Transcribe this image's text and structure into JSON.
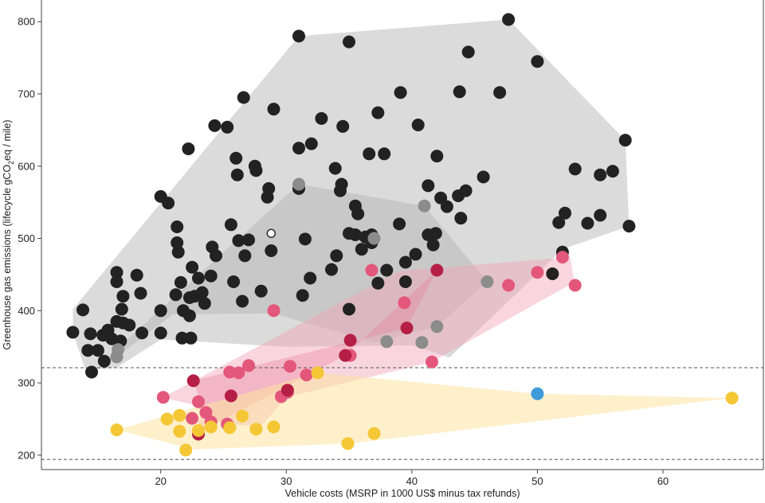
{
  "chart_data": {
    "type": "scatter",
    "xlabel": "Vehicle costs (MSRP in 1000 US$ minus tax refunds)",
    "ylabel_parts": [
      "Greenhouse gas emissions (lifecycle gCO",
      "2",
      "eq / mile)"
    ],
    "xlim": [
      10.5,
      68
    ],
    "ylim": [
      180,
      830
    ],
    "x_ticks": [
      20,
      30,
      40,
      50,
      60
    ],
    "y_ticks": [
      200,
      300,
      400,
      500,
      600,
      700,
      800
    ],
    "grid": false,
    "reference_lines": [
      {
        "y": 321,
        "style": "dashed"
      },
      {
        "y": 194,
        "style": "dashed"
      }
    ],
    "colors": {
      "black": "#222222",
      "gray": "#8c8c8c",
      "pink": "#e3577b",
      "crimson": "#b51f45",
      "yellow": "#f5c735",
      "blue": "#3f9ad9",
      "white": "#ffffff",
      "hull_gray": "#bdbdbd",
      "hull_pink": "#f2a3b8",
      "hull_yellow": "#fbe3a0"
    },
    "hulls": [
      {
        "name": "black",
        "color": "#bdbdbd",
        "opacity": 0.55,
        "points": [
          [
            13,
            370
          ],
          [
            14,
            318
          ],
          [
            16.5,
            321
          ],
          [
            20,
            360
          ],
          [
            30,
            350
          ],
          [
            40,
            352
          ],
          [
            43,
            335
          ],
          [
            52,
            485
          ],
          [
            57.3,
            517
          ],
          [
            57,
            636
          ],
          [
            47.7,
            803
          ],
          [
            31,
            780
          ],
          [
            13,
            402
          ]
        ]
      },
      {
        "name": "gray",
        "color": "#9a9a9a",
        "opacity": 0.3,
        "points": [
          [
            16.5,
            336
          ],
          [
            16.5,
            347
          ],
          [
            31,
            575
          ],
          [
            41,
            545
          ],
          [
            46,
            440
          ],
          [
            42,
            378
          ],
          [
            37,
            356
          ],
          [
            29,
            396
          ],
          [
            21,
            395
          ]
        ]
      },
      {
        "name": "pink",
        "color": "#f2a3b8",
        "opacity": 0.45,
        "points": [
          [
            20.2,
            280
          ],
          [
            22.5,
            270
          ],
          [
            25,
            243
          ],
          [
            28,
            240
          ],
          [
            30,
            280
          ],
          [
            41.6,
            329
          ],
          [
            52.5,
            435
          ],
          [
            53,
            435
          ],
          [
            52.6,
            474
          ],
          [
            39,
            455
          ]
        ]
      },
      {
        "name": "crimson",
        "color": "#e77b98",
        "opacity": 0.35,
        "points": [
          [
            22.6,
            303
          ],
          [
            23.3,
            268
          ],
          [
            22.8,
            229
          ],
          [
            34.7,
            338
          ],
          [
            42,
            456
          ],
          [
            39.6,
            376
          ]
        ]
      },
      {
        "name": "yellow",
        "color": "#fbe3a0",
        "opacity": 0.55,
        "points": [
          [
            16.5,
            235
          ],
          [
            22.7,
            208
          ],
          [
            35,
            216
          ],
          [
            65.5,
            279
          ],
          [
            50,
            285
          ],
          [
            32.5,
            314
          ]
        ]
      }
    ],
    "series": [
      {
        "group": "black",
        "color": "#222222",
        "points": [
          [
            13,
            370
          ],
          [
            13.8,
            401
          ],
          [
            14.2,
            345
          ],
          [
            14.4,
            368
          ],
          [
            14.5,
            315
          ],
          [
            15,
            345
          ],
          [
            15.4,
            366
          ],
          [
            15.5,
            330
          ],
          [
            15.8,
            373
          ],
          [
            16.1,
            361
          ],
          [
            16.5,
            385
          ],
          [
            16.5,
            453
          ],
          [
            16.5,
            440
          ],
          [
            16.8,
            358
          ],
          [
            16.9,
            402
          ],
          [
            17,
            420
          ],
          [
            17,
            383
          ],
          [
            17.5,
            380
          ],
          [
            18.1,
            449
          ],
          [
            18.4,
            424
          ],
          [
            18.5,
            369
          ],
          [
            20,
            369
          ],
          [
            20,
            558
          ],
          [
            20,
            400
          ],
          [
            20.6,
            549
          ],
          [
            21.2,
            422
          ],
          [
            21.3,
            516
          ],
          [
            21.3,
            494
          ],
          [
            21.4,
            481
          ],
          [
            21.6,
            439
          ],
          [
            21.7,
            362
          ],
          [
            21.8,
            400
          ],
          [
            22.2,
            624
          ],
          [
            22.3,
            393
          ],
          [
            22.3,
            418
          ],
          [
            22.5,
            460
          ],
          [
            22.4,
            362
          ],
          [
            22.7,
            420
          ],
          [
            23,
            445
          ],
          [
            23.3,
            425
          ],
          [
            23.5,
            410
          ],
          [
            24,
            448
          ],
          [
            24.1,
            488
          ],
          [
            24.3,
            656
          ],
          [
            24.4,
            476
          ],
          [
            25.3,
            654
          ],
          [
            25.6,
            519
          ],
          [
            25.8,
            440
          ],
          [
            26,
            611
          ],
          [
            26.1,
            588
          ],
          [
            26.2,
            497
          ],
          [
            26.5,
            413
          ],
          [
            26.6,
            695
          ],
          [
            26.7,
            476
          ],
          [
            27,
            498
          ],
          [
            27.5,
            600
          ],
          [
            27.6,
            594
          ],
          [
            28,
            427
          ],
          [
            28.5,
            557
          ],
          [
            28.6,
            569
          ],
          [
            28.8,
            483
          ],
          [
            29,
            679
          ],
          [
            31,
            625
          ],
          [
            31,
            569
          ],
          [
            31.5,
            499
          ],
          [
            31.9,
            445
          ],
          [
            31.3,
            421
          ],
          [
            32,
            631
          ],
          [
            32.8,
            666
          ],
          [
            33.6,
            457
          ],
          [
            33.9,
            597
          ],
          [
            34,
            476
          ],
          [
            34.3,
            566
          ],
          [
            34.4,
            575
          ],
          [
            34.5,
            655
          ],
          [
            35,
            772
          ],
          [
            35,
            402
          ],
          [
            35,
            507
          ],
          [
            35.5,
            505
          ],
          [
            35.5,
            545
          ],
          [
            35.7,
            534
          ],
          [
            36,
            485
          ],
          [
            36.3,
            502
          ],
          [
            36.8,
            505
          ],
          [
            36.8,
            494
          ],
          [
            36.6,
            617
          ],
          [
            37.3,
            674
          ],
          [
            37.3,
            438
          ],
          [
            37.8,
            617
          ],
          [
            38,
            456
          ],
          [
            39,
            520
          ],
          [
            39.1,
            702
          ],
          [
            39.5,
            440
          ],
          [
            39.5,
            467
          ],
          [
            40.3,
            478
          ],
          [
            40.5,
            657
          ],
          [
            41.3,
            573
          ],
          [
            41.3,
            505
          ],
          [
            41.7,
            491
          ],
          [
            41.9,
            507
          ],
          [
            42,
            614
          ],
          [
            42.3,
            556
          ],
          [
            42.8,
            544
          ],
          [
            43.7,
            559
          ],
          [
            43.8,
            703
          ],
          [
            43.9,
            528
          ],
          [
            44.3,
            566
          ],
          [
            44.5,
            758
          ],
          [
            45.7,
            585
          ],
          [
            47,
            702
          ],
          [
            47.7,
            803
          ],
          [
            50,
            745
          ],
          [
            51.2,
            451
          ],
          [
            51.7,
            522
          ],
          [
            52,
            481
          ],
          [
            52.2,
            535
          ],
          [
            53,
            596
          ],
          [
            54,
            521
          ],
          [
            55,
            588
          ],
          [
            55,
            532
          ],
          [
            56,
            593
          ],
          [
            57,
            636
          ],
          [
            57.3,
            517
          ],
          [
            31,
            780
          ]
        ]
      },
      {
        "group": "gray",
        "color": "#8c8c8c",
        "points": [
          [
            16.5,
            336
          ],
          [
            16.6,
            346
          ],
          [
            31,
            575
          ],
          [
            37,
            500
          ],
          [
            38,
            357
          ],
          [
            40.8,
            356
          ],
          [
            41,
            545
          ],
          [
            42,
            378
          ],
          [
            46,
            440
          ]
        ]
      },
      {
        "group": "pink",
        "color": "#e3577b",
        "points": [
          [
            20.2,
            280
          ],
          [
            22.5,
            251
          ],
          [
            23,
            274
          ],
          [
            23.6,
            259
          ],
          [
            24,
            246
          ],
          [
            25.3,
            243
          ],
          [
            25.5,
            315
          ],
          [
            26.2,
            314
          ],
          [
            27,
            324
          ],
          [
            29,
            400
          ],
          [
            29.6,
            281
          ],
          [
            30.1,
            287
          ],
          [
            30.3,
            323
          ],
          [
            31.6,
            311
          ],
          [
            35.1,
            338
          ],
          [
            36.8,
            456
          ],
          [
            39.4,
            411
          ],
          [
            41.6,
            329
          ],
          [
            47.7,
            435
          ],
          [
            50,
            453
          ],
          [
            52,
            474
          ],
          [
            53,
            435
          ]
        ]
      },
      {
        "group": "crimson",
        "color": "#b51f45",
        "points": [
          [
            22.6,
            303
          ],
          [
            23,
            229
          ],
          [
            25.6,
            282
          ],
          [
            30.1,
            290
          ],
          [
            34.7,
            338
          ],
          [
            35.1,
            359
          ],
          [
            39.6,
            376
          ],
          [
            42,
            456
          ]
        ]
      },
      {
        "group": "yellow",
        "color": "#f5c735",
        "points": [
          [
            16.5,
            235
          ],
          [
            20.5,
            250
          ],
          [
            21.5,
            255
          ],
          [
            21.5,
            233
          ],
          [
            22,
            207
          ],
          [
            23,
            234
          ],
          [
            24,
            239
          ],
          [
            25.5,
            238
          ],
          [
            26.5,
            254
          ],
          [
            27.6,
            236
          ],
          [
            29,
            239
          ],
          [
            32.5,
            314
          ],
          [
            34.9,
            216
          ],
          [
            37,
            230
          ],
          [
            65.5,
            279
          ]
        ]
      },
      {
        "group": "blue",
        "color": "#3f9ad9",
        "points": [
          [
            50,
            285
          ]
        ]
      },
      {
        "group": "white",
        "color": "#ffffff",
        "points": [
          [
            28.8,
            507
          ]
        ]
      }
    ]
  }
}
